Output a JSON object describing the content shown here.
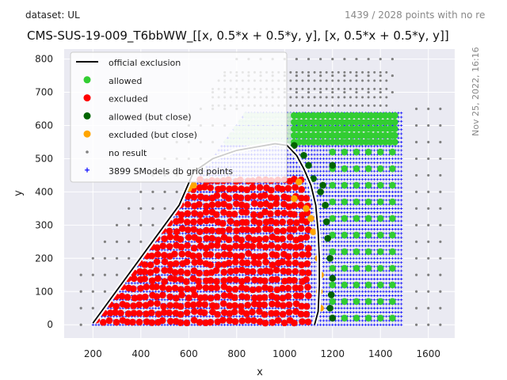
{
  "header": {
    "dataset_label": "dataset: UL",
    "points_note": "1439 / 2028 points with no re",
    "title": "CMS-SUS-19-009_T6bbWW_[[x, 0.5*x + 0.5*y, y], [x, 0.5*x + 0.5*y, y]]",
    "date_stamp": "Nov 25, 2022, 16:16"
  },
  "chart_data": {
    "type": "scatter",
    "xlabel": "x",
    "ylabel": "y",
    "xlim": [
      80,
      1710
    ],
    "ylim": [
      -40,
      830
    ],
    "x_ticks": [
      200,
      400,
      600,
      800,
      1000,
      1200,
      1400,
      1600
    ],
    "y_ticks": [
      0,
      100,
      200,
      300,
      400,
      500,
      600,
      700,
      800
    ],
    "legend_position": "top-left",
    "legend": [
      {
        "key": "official",
        "label": "official exclusion",
        "marker": "line",
        "color": "#000000"
      },
      {
        "key": "allowed",
        "label": "allowed",
        "marker": "circle",
        "color": "#32cd32"
      },
      {
        "key": "excluded",
        "label": "excluded",
        "marker": "circle",
        "color": "#ff0000"
      },
      {
        "key": "allowed_close",
        "label": "allowed (but close)",
        "marker": "circle",
        "color": "#006400"
      },
      {
        "key": "excluded_close",
        "label": "excluded (but close)",
        "marker": "circle",
        "color": "#ffa500"
      },
      {
        "key": "noresult",
        "label": "no result",
        "marker": "dot",
        "color": "#808080"
      },
      {
        "key": "grid",
        "label": "3899 SModels db grid points",
        "marker": "plus",
        "color": "#0000ff"
      }
    ],
    "exclusion_curve": [
      [
        200,
        5
      ],
      [
        560,
        360
      ],
      [
        620,
        460
      ],
      [
        700,
        500
      ],
      [
        800,
        525
      ],
      [
        880,
        535
      ],
      [
        960,
        545
      ],
      [
        1010,
        540
      ],
      [
        1050,
        510
      ],
      [
        1080,
        470
      ],
      [
        1110,
        420
      ],
      [
        1130,
        360
      ],
      [
        1140,
        280
      ],
      [
        1145,
        200
      ],
      [
        1145,
        120
      ],
      [
        1140,
        40
      ],
      [
        1125,
        0
      ]
    ],
    "grid_region": {
      "x_range": [
        200,
        1490
      ],
      "y_range": [
        0,
        640
      ],
      "upper_edge": "y = x - 200 up to y = 640"
    },
    "excluded_region": {
      "x_range": [
        220,
        1110
      ],
      "y_range": [
        10,
        440
      ]
    },
    "allowed_region": {
      "x_range": [
        1150,
        1460
      ],
      "y_range": [
        10,
        600
      ]
    },
    "allowed_band": {
      "x_range": [
        680,
        1460
      ],
      "y_range": [
        550,
        630
      ]
    },
    "noresult_points": {
      "x_spacing": 50,
      "y_spacing": 50
    }
  }
}
